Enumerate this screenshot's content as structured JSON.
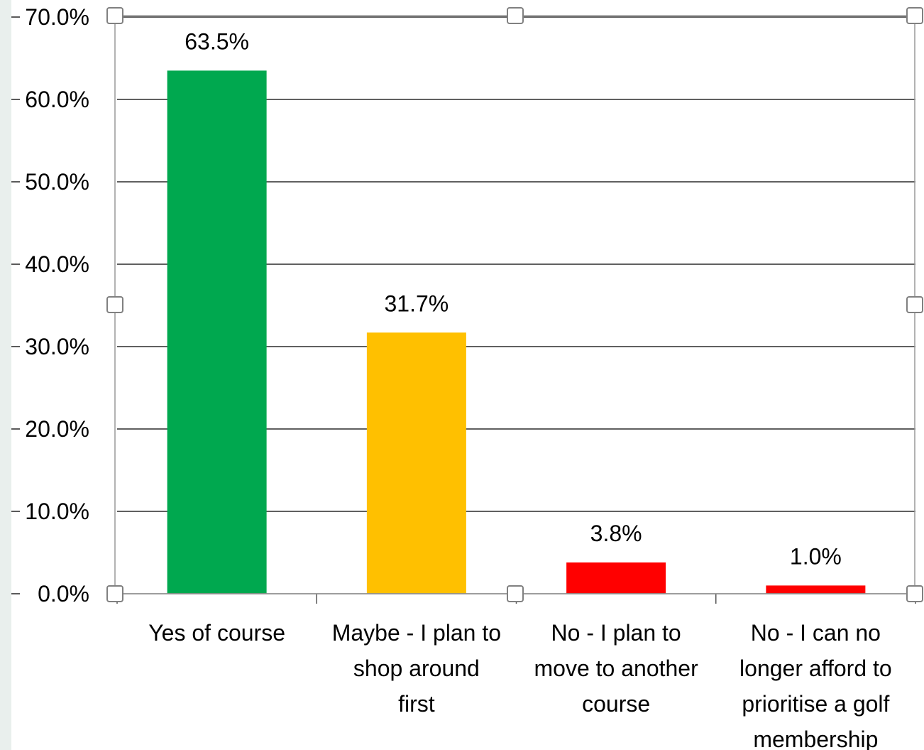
{
  "chart_data": {
    "type": "bar",
    "categories": [
      [
        "Yes of course"
      ],
      [
        "Maybe - I plan to",
        "shop around",
        "first"
      ],
      [
        "No - I plan to",
        "move to another",
        "course"
      ],
      [
        "No - I can no",
        "longer afford to",
        "prioritise a golf",
        "membership"
      ]
    ],
    "values": [
      63.5,
      31.7,
      3.8,
      1.0
    ],
    "data_labels": [
      "63.5%",
      "31.7%",
      "3.8%",
      "1.0%"
    ],
    "colors": [
      "#00a84f",
      "#ffc000",
      "#ff0000",
      "#ff0000"
    ],
    "ylim": [
      0,
      70
    ],
    "yticks": [
      "0.0%",
      "10.0%",
      "20.0%",
      "30.0%",
      "40.0%",
      "50.0%",
      "60.0%",
      "70.0%"
    ],
    "grid": true,
    "title": "",
    "xlabel": "",
    "ylabel": ""
  }
}
